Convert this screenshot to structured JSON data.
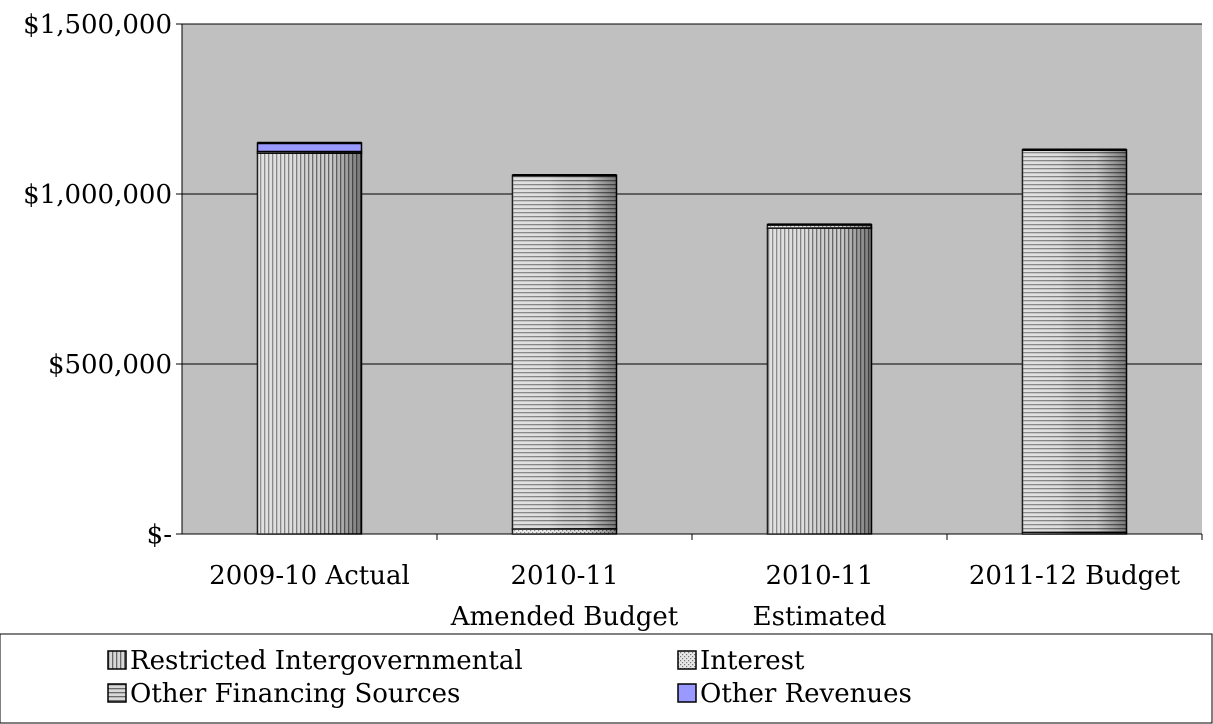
{
  "chart_data": {
    "type": "bar",
    "stacked": true,
    "categories": [
      [
        "2009-10 Actual"
      ],
      [
        "2010-11",
        "Amended Budget"
      ],
      [
        "2010-11",
        "Estimated"
      ],
      [
        "2011-12 Budget"
      ]
    ],
    "series": [
      {
        "name": "Restricted Intergovernmental",
        "values": [
          1120000,
          0,
          900000,
          0
        ],
        "pattern": "vertical"
      },
      {
        "name": "Interest",
        "values": [
          5000,
          15000,
          10000,
          5000
        ],
        "pattern": "dots"
      },
      {
        "name": "Other Financing Sources",
        "values": [
          0,
          1040000,
          0,
          1125000
        ],
        "pattern": "horizontal"
      },
      {
        "name": "Other Revenues",
        "values": [
          25000,
          0,
          0,
          0
        ],
        "pattern": "solid"
      }
    ],
    "ylim": [
      0,
      1500000
    ],
    "yticks": [
      0,
      500000,
      1000000,
      1500000
    ],
    "ytick_labels": [
      "$-",
      "$500,000",
      "$1,000,000",
      "$1,500,000"
    ],
    "grid": true,
    "legend_position": "bottom",
    "colors": {
      "plot_background": "#c0c0c0",
      "other_revenues": "#9999ff",
      "bar_outline": "#000000"
    }
  }
}
